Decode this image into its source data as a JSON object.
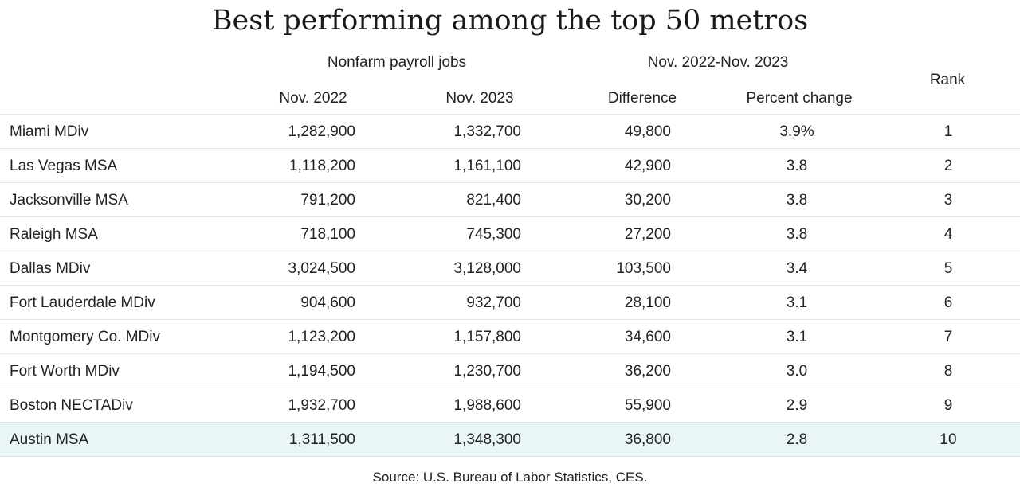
{
  "title": "Best performing among the top 50 metros",
  "headers": {
    "group_jobs": "Nonfarm payroll jobs",
    "group_change": "Nov. 2022-Nov. 2023",
    "rank": "Rank",
    "nov_2022": "Nov. 2022",
    "nov_2023": "Nov. 2023",
    "difference": "Difference",
    "percent_change": "Percent change"
  },
  "source": "Source: U.S. Bureau of Labor Statistics, CES.",
  "colors": {
    "highlight_row": "#eaf5f5",
    "row_divider": "#e4e4e4"
  },
  "chart_data": {
    "type": "table",
    "title": "Best performing among the top 50 metros",
    "columns": [
      "",
      "Nov. 2022",
      "Nov. 2023",
      "Difference",
      "Percent change",
      "Rank"
    ],
    "rows": [
      {
        "metro": "Miami MDiv",
        "nov_2022": "1,282,900",
        "nov_2023": "1,332,700",
        "difference": "49,800",
        "percent_change": "3.9%",
        "rank": "1"
      },
      {
        "metro": "Las Vegas MSA",
        "nov_2022": "1,118,200",
        "nov_2023": "1,161,100",
        "difference": "42,900",
        "percent_change": "3.8",
        "rank": "2"
      },
      {
        "metro": "Jacksonville MSA",
        "nov_2022": "791,200",
        "nov_2023": "821,400",
        "difference": "30,200",
        "percent_change": "3.8",
        "rank": "3"
      },
      {
        "metro": "Raleigh MSA",
        "nov_2022": "718,100",
        "nov_2023": "745,300",
        "difference": "27,200",
        "percent_change": "3.8",
        "rank": "4"
      },
      {
        "metro": "Dallas MDiv",
        "nov_2022": "3,024,500",
        "nov_2023": "3,128,000",
        "difference": "103,500",
        "percent_change": "3.4",
        "rank": "5"
      },
      {
        "metro": "Fort Lauderdale MDiv",
        "nov_2022": "904,600",
        "nov_2023": "932,700",
        "difference": "28,100",
        "percent_change": "3.1",
        "rank": "6"
      },
      {
        "metro": "Montgomery Co. MDiv",
        "nov_2022": "1,123,200",
        "nov_2023": "1,157,800",
        "difference": "34,600",
        "percent_change": "3.1",
        "rank": "7"
      },
      {
        "metro": "Fort Worth MDiv",
        "nov_2022": "1,194,500",
        "nov_2023": "1,230,700",
        "difference": "36,200",
        "percent_change": "3.0",
        "rank": "8"
      },
      {
        "metro": "Boston NECTADiv",
        "nov_2022": "1,932,700",
        "nov_2023": "1,988,600",
        "difference": "55,900",
        "percent_change": "2.9",
        "rank": "9"
      },
      {
        "metro": "Austin MSA",
        "nov_2022": "1,311,500",
        "nov_2023": "1,348,300",
        "difference": "36,800",
        "percent_change": "2.8",
        "rank": "10",
        "highlighted": true
      }
    ]
  }
}
